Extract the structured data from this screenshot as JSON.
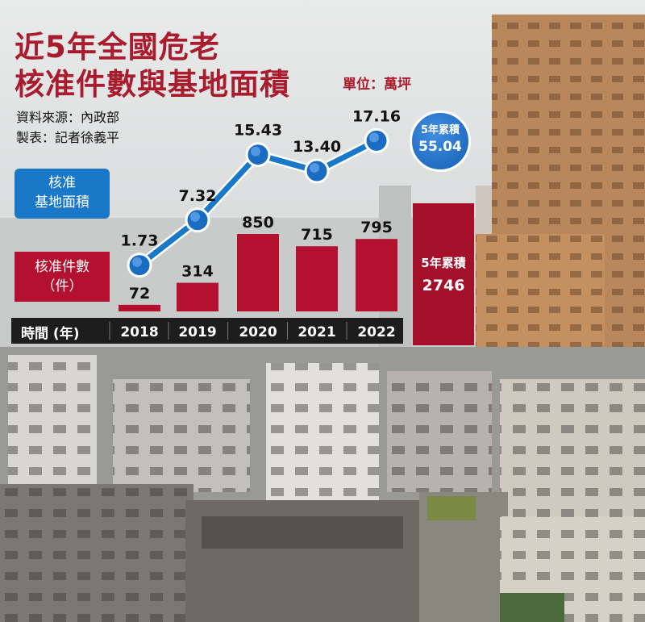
{
  "header": {
    "title_line1": "近5年全國危老",
    "title_line2": "核准件數與基地面積",
    "unit": "單位：萬坪",
    "source": "資料來源：內政部",
    "maker": "製表：記者徐義平"
  },
  "legend": {
    "area_line1": "核准",
    "area_line2": "基地面積",
    "cases_line1": "核准件數",
    "cases_line2": "（件）"
  },
  "axis": {
    "title": "時間 (年)"
  },
  "totals": {
    "area_label": "5年累積",
    "area_value": "55.04",
    "cases_label": "5年累積",
    "cases_value": "2746"
  },
  "colors": {
    "title": "#a81c2e",
    "line": "#1a78c8",
    "bar": "#b3112f"
  },
  "chart_data": {
    "type": "bar",
    "categories": [
      "2018",
      "2019",
      "2020",
      "2021",
      "2022"
    ],
    "series": [
      {
        "name": "核准件數（件）",
        "type": "bar",
        "values": [
          72,
          314,
          850,
          715,
          795
        ]
      },
      {
        "name": "核准基地面積",
        "type": "line",
        "values": [
          1.73,
          7.32,
          15.43,
          13.4,
          17.16
        ]
      }
    ],
    "value_labels_bar": [
      "72",
      "314",
      "850",
      "715",
      "795"
    ],
    "value_labels_line": [
      "1.73",
      "7.32",
      "15.43",
      "13.40",
      "17.16"
    ],
    "xlabel": "時間 (年)",
    "ylabel": "",
    "totals": {
      "cases": 2746,
      "area": 55.04
    }
  }
}
